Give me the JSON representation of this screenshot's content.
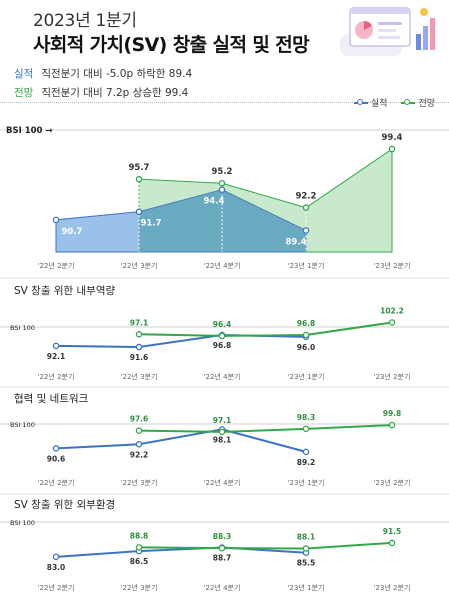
{
  "header": {
    "period": "2023년 1분기",
    "title": "사회적 가치(SV) 창출 실적 및 전망",
    "summary_actual_tag": "실적",
    "summary_actual_text": "직전분기 대비 -5.0p 하락한 89.4",
    "summary_forecast_tag": "전망",
    "summary_forecast_text": "직전분기 대비 7.2p 상승한 99.4"
  },
  "legend": {
    "actual": "실적",
    "forecast": "전망"
  },
  "colors": {
    "actual": "#3e73c4",
    "actual_fill": "#7fb1e3",
    "forecast": "#33a84a",
    "forecast_fill": "#bfe5c3",
    "overlap_fill": "#4a9aa6"
  },
  "chart_data": [
    {
      "type": "area",
      "title": "",
      "reference_label": "BSI 100 →",
      "reference_value": 100,
      "categories": [
        "'22년 2분기",
        "'22년 3분기",
        "'22년 4분기",
        "'23년 1분기",
        "'23년 2분기"
      ],
      "series": [
        {
          "name": "실적",
          "values": [
            90.7,
            91.7,
            94.4,
            89.4,
            null
          ]
        },
        {
          "name": "전망",
          "values": [
            null,
            95.7,
            95.2,
            92.2,
            99.4
          ]
        }
      ],
      "ylim": [
        87,
        101
      ]
    },
    {
      "type": "line",
      "title": "SV 창출 위한 내부역량",
      "reference_label": "BSI 100",
      "reference_value": 100,
      "categories": [
        "'22년 2분기",
        "'22년 3분기",
        "'22년 4분기",
        "'23년 1분기",
        "'23년 2분기"
      ],
      "series": [
        {
          "name": "실적",
          "values": [
            92.1,
            91.6,
            96.8,
            96.0,
            null
          ]
        },
        {
          "name": "전망",
          "values": [
            null,
            97.1,
            96.4,
            96.8,
            102.2
          ]
        }
      ],
      "ylim": [
        86,
        105
      ]
    },
    {
      "type": "line",
      "title": "협력 및 네트워크",
      "reference_label": "BSI 100",
      "reference_value": 100,
      "categories": [
        "'22년 2분기",
        "'22년 3분기",
        "'22년 4분기",
        "'23년 1분기",
        "'23년 2분기"
      ],
      "series": [
        {
          "name": "실적",
          "values": [
            90.6,
            92.2,
            98.1,
            89.2,
            null
          ]
        },
        {
          "name": "전망",
          "values": [
            null,
            97.6,
            97.1,
            98.3,
            99.8
          ]
        }
      ],
      "ylim": [
        84,
        103
      ]
    },
    {
      "type": "line",
      "title": "SV 창출 위한 외부환경",
      "reference_label": "BSI 100",
      "reference_value": 100,
      "categories": [
        "'22년 2분기",
        "'22년 3분기",
        "'22년 4분기",
        "'23년 1분기",
        "'23년 2분기"
      ],
      "series": [
        {
          "name": "실적",
          "values": [
            83.0,
            86.5,
            88.7,
            85.5,
            null
          ]
        },
        {
          "name": "전망",
          "values": [
            null,
            88.8,
            88.3,
            88.1,
            91.5
          ]
        }
      ],
      "ylim": [
        78,
        100
      ]
    }
  ]
}
